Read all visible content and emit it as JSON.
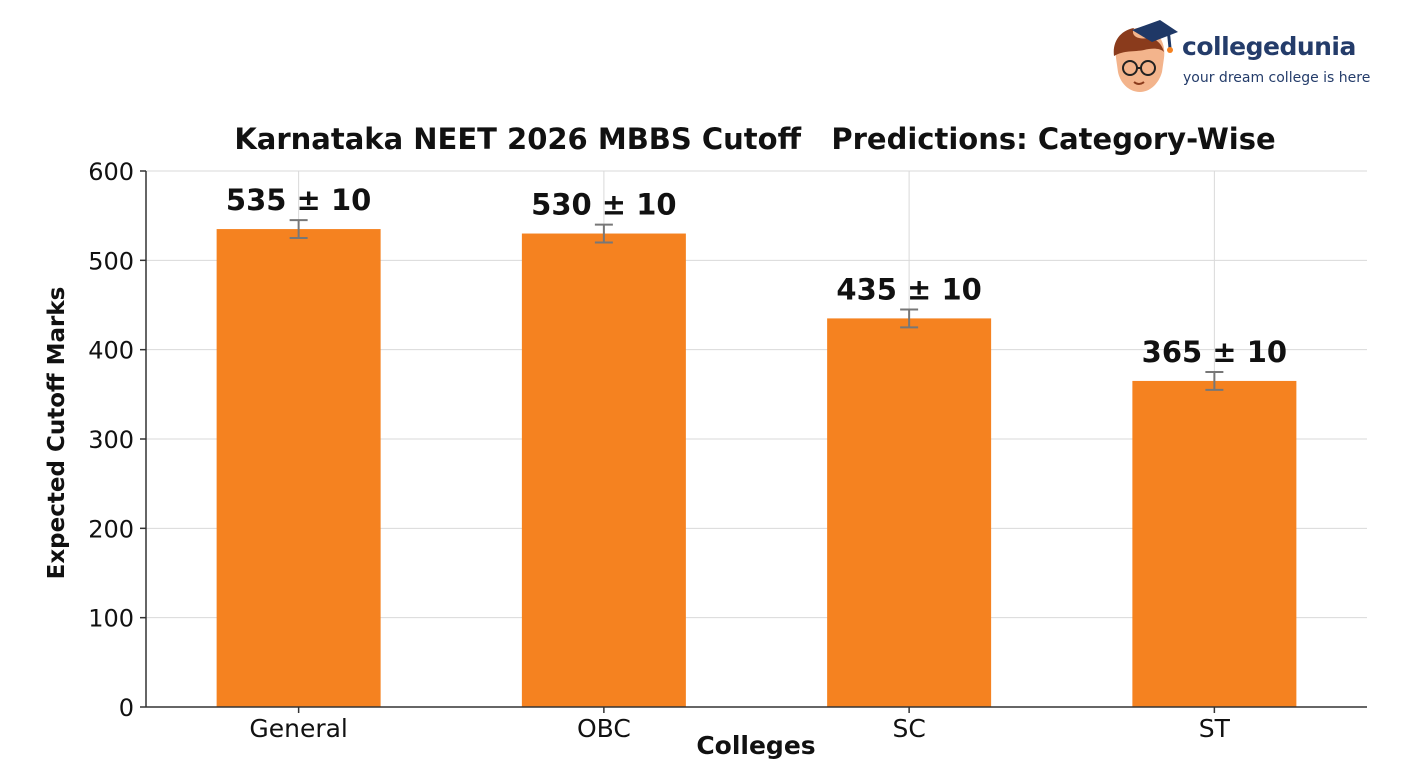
{
  "brand": {
    "name": "collegedunia",
    "tagline": "your dream college is here",
    "logo_icon": "student-mascot-icon",
    "colors": {
      "text": "#243c6a",
      "cap": "#1f3866",
      "face": "#f3b48c"
    }
  },
  "chart_data": {
    "type": "bar",
    "title": "Karnataka NEET 2026 MBBS Cutoff   Predictions: Category-Wise",
    "xlabel": "Colleges",
    "ylabel": "Expected Cutoff Marks",
    "categories": [
      "General",
      "OBC",
      "SC",
      "ST"
    ],
    "values": [
      535,
      530,
      435,
      365
    ],
    "error": [
      10,
      10,
      10,
      10
    ],
    "data_labels": [
      "535 ± 10",
      "530 ± 10",
      "435 ± 10",
      "365 ± 10"
    ],
    "ylim": [
      0,
      600
    ],
    "yticks": [
      0,
      100,
      200,
      300,
      400,
      500,
      600
    ],
    "grid": true,
    "legend": "none",
    "colors": {
      "bar": "#f58220",
      "grid": "#d9d9d9",
      "axis": "#333333",
      "errorbar": "#777777"
    }
  }
}
